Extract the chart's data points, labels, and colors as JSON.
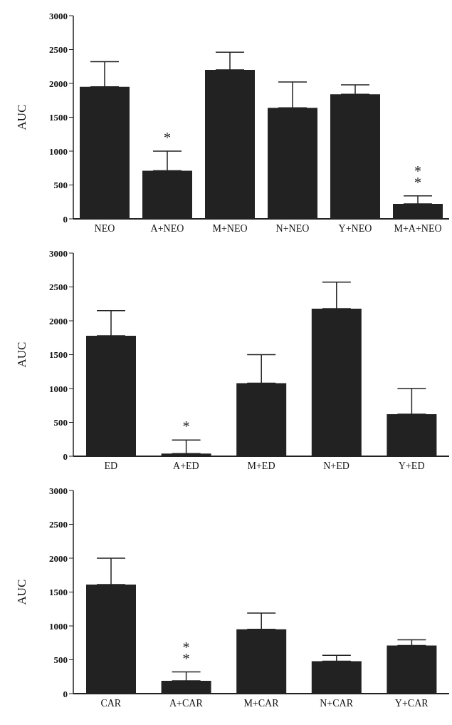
{
  "chart_data": [
    {
      "type": "bar",
      "ylabel": "AUC",
      "categories": [
        "NEO",
        "A+NEO",
        "M+NEO",
        "N+NEO",
        "Y+NEO",
        "M+A+NEO"
      ],
      "values": [
        1950,
        710,
        2200,
        1640,
        1840,
        220
      ],
      "errors": [
        [
          1950,
          2320
        ],
        [
          710,
          1000
        ],
        [
          2200,
          2460
        ],
        [
          1640,
          2020
        ],
        [
          1840,
          1980
        ],
        [
          220,
          340
        ]
      ],
      "color": "#222222",
      "ylim": [
        0,
        3000
      ],
      "yticks": [
        0,
        500,
        1000,
        1500,
        2000,
        2500,
        3000
      ],
      "grid": false,
      "legend": false,
      "value_labels": [
        null,
        "*",
        null,
        null,
        null,
        "**"
      ]
    },
    {
      "type": "bar",
      "ylabel": "AUC",
      "categories": [
        "ED",
        "A+ED",
        "M+ED",
        "N+ED",
        "Y+ED"
      ],
      "values": [
        1780,
        40,
        1080,
        2180,
        620
      ],
      "errors": [
        [
          1780,
          2150
        ],
        [
          40,
          240
        ],
        [
          1080,
          1500
        ],
        [
          2180,
          2570
        ],
        [
          620,
          1000
        ]
      ],
      "color": "#222222",
      "ylim": [
        0,
        3000
      ],
      "yticks": [
        0,
        500,
        1000,
        1500,
        2000,
        2500,
        3000
      ],
      "grid": false,
      "legend": false,
      "value_labels": [
        null,
        "*",
        null,
        null,
        null
      ]
    },
    {
      "type": "bar",
      "ylabel": "AUC",
      "categories": [
        "CAR",
        "A+CAR",
        "M+CAR",
        "N+CAR",
        "Y+CAR"
      ],
      "values": [
        1610,
        190,
        950,
        480,
        710
      ],
      "errors": [
        [
          1610,
          2000
        ],
        [
          190,
          320
        ],
        [
          950,
          1190
        ],
        [
          480,
          565
        ],
        [
          710,
          795
        ]
      ],
      "color": "#222222",
      "ylim": [
        0,
        3000
      ],
      "yticks": [
        0,
        500,
        1000,
        1500,
        2000,
        2500,
        3000
      ],
      "grid": false,
      "legend": false,
      "value_labels": [
        null,
        "**",
        null,
        null,
        null
      ]
    }
  ]
}
